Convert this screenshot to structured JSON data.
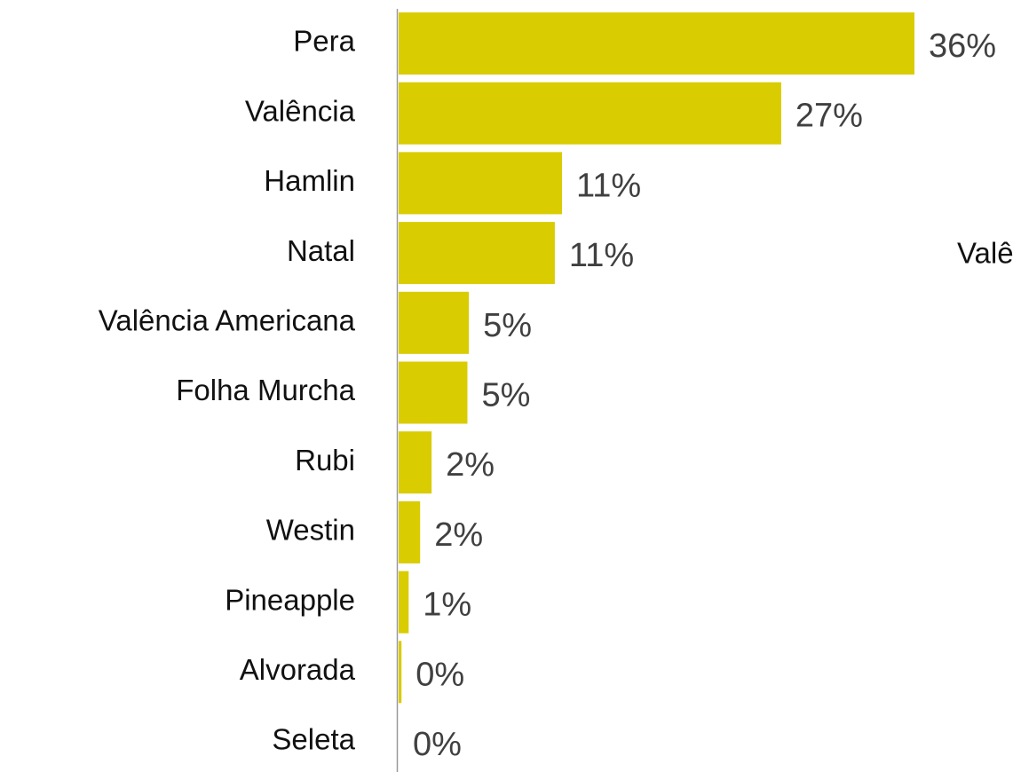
{
  "chart_data": {
    "type": "bar",
    "orientation": "horizontal",
    "categories": [
      "Pera",
      "Valência",
      "Hamlin",
      "Natal",
      "Valência Americana",
      "Folha Murcha",
      "Rubi",
      "Westin",
      "Pineapple",
      "Alvorada",
      "Seleta"
    ],
    "values": [
      36,
      26.7,
      11.4,
      10.9,
      4.9,
      4.8,
      2.3,
      1.5,
      0.7,
      0.2,
      0
    ],
    "value_labels": [
      "36%",
      "27%",
      "11%",
      "11%",
      "5%",
      "5%",
      "2%",
      "2%",
      "1%",
      "0%",
      "0%"
    ],
    "color": "#d9cc00",
    "annotation": "Valência"
  }
}
